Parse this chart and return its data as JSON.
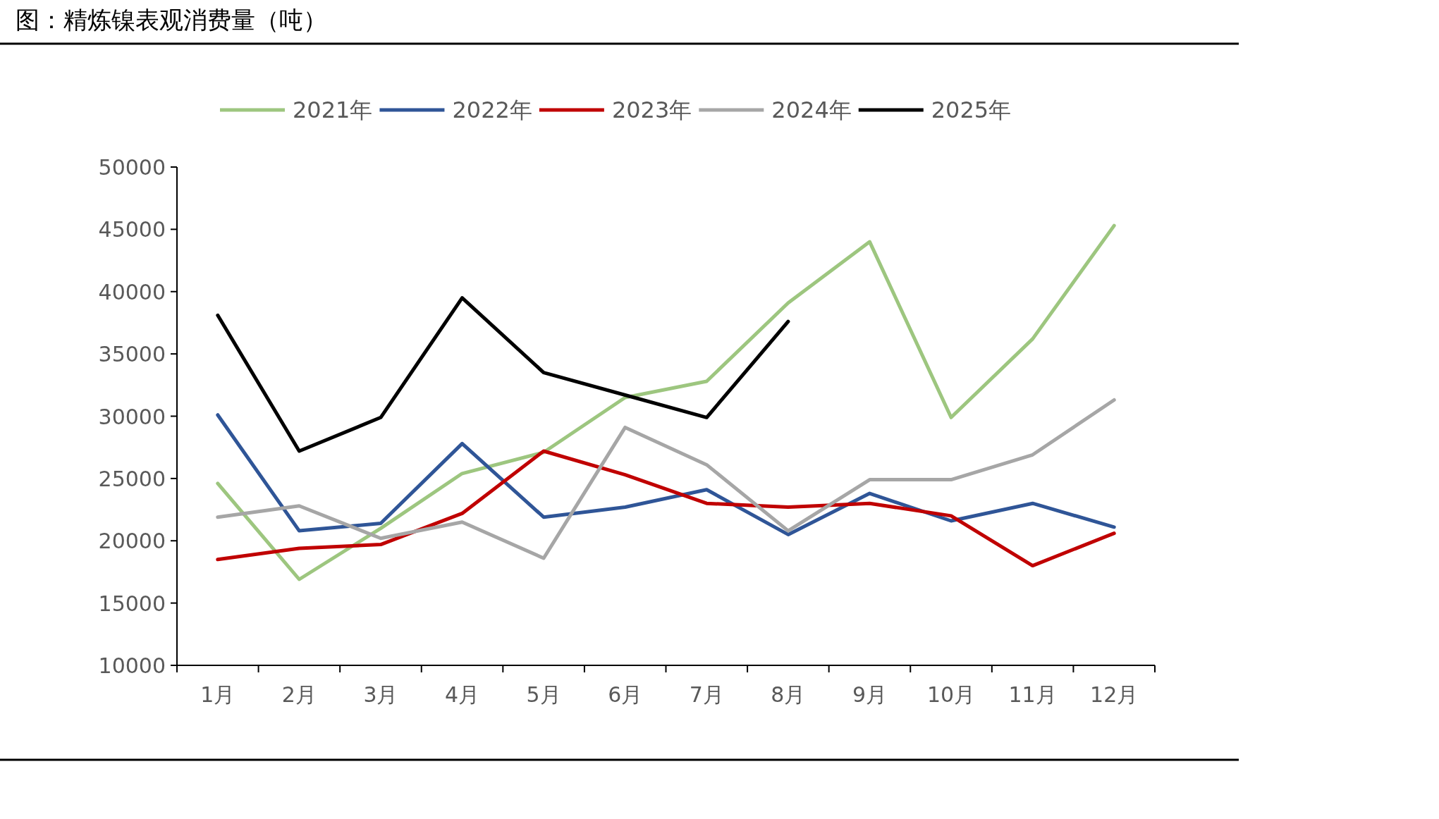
{
  "chart_data": {
    "type": "line",
    "title": "图：精炼镍表观消费量（吨）",
    "categories": [
      "1月",
      "2月",
      "3月",
      "4月",
      "5月",
      "6月",
      "7月",
      "8月",
      "9月",
      "10月",
      "11月",
      "12月"
    ],
    "series": [
      {
        "name": "2021年",
        "color": "#9dc67f",
        "values": [
          24600,
          16900,
          21000,
          25400,
          27100,
          31500,
          32800,
          39100,
          44000,
          29900,
          36200,
          45300
        ]
      },
      {
        "name": "2022年",
        "color": "#2f5597",
        "values": [
          30100,
          20800,
          21400,
          27800,
          21900,
          22700,
          24100,
          20500,
          23800,
          21600,
          23000,
          21100
        ]
      },
      {
        "name": "2023年",
        "color": "#c00000",
        "values": [
          18500,
          19400,
          19700,
          22200,
          27200,
          25300,
          23000,
          22700,
          23000,
          22000,
          18000,
          20600
        ]
      },
      {
        "name": "2024年",
        "color": "#a6a6a6",
        "values": [
          21900,
          22800,
          20200,
          21500,
          18600,
          29100,
          26100,
          20800,
          24900,
          24900,
          26900,
          31300
        ]
      },
      {
        "name": "2025年",
        "color": "#000000",
        "values": [
          38100,
          27200,
          29900,
          39500,
          33500,
          31700,
          29900,
          37600,
          null,
          null,
          null,
          null
        ]
      }
    ],
    "ylim": [
      10000,
      50000
    ],
    "yticks": [
      10000,
      15000,
      20000,
      25000,
      30000,
      35000,
      40000,
      45000,
      50000
    ],
    "legend": "top",
    "grid": false,
    "marker": "none",
    "line_style": "solid"
  }
}
